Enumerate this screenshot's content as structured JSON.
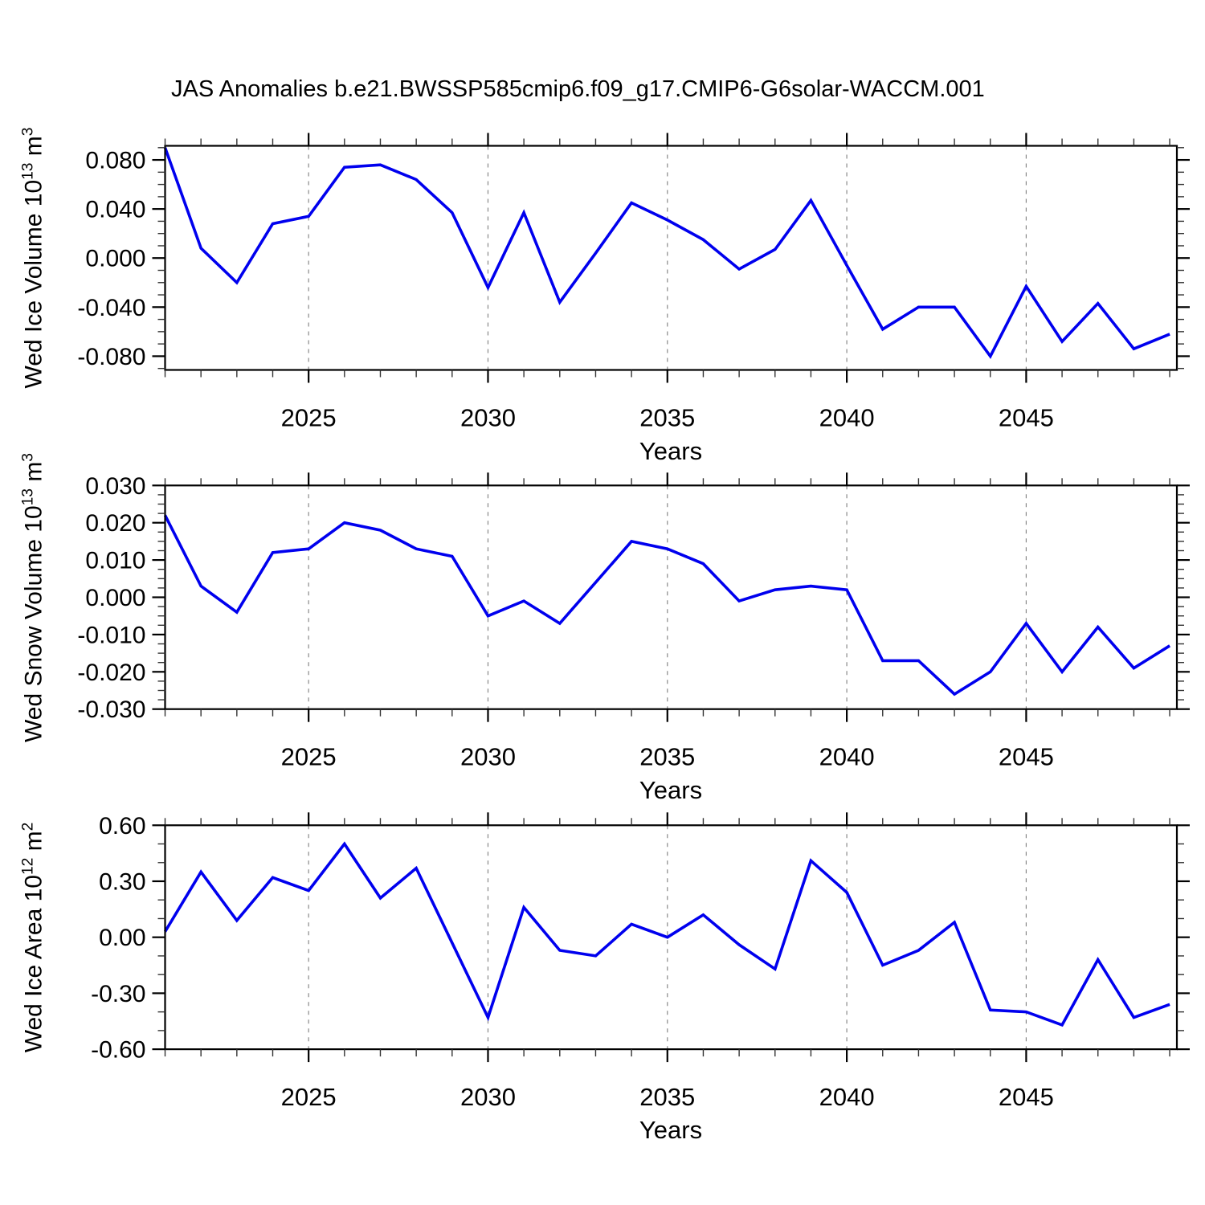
{
  "title": "JAS Anomalies b.e21.BWSSP585cmip6.f09_g17.CMIP6-G6solar-WACCM.001",
  "line_color": "#0000ee",
  "frame_color": "#000000",
  "gridline_color": "#888888",
  "chart_data": [
    {
      "type": "line",
      "ylabel": {
        "text": "Wed Ice Volume 10",
        "exp": "13",
        "unit": " m",
        "unit_exp": "3"
      },
      "xlabel": "Years",
      "legend": "none",
      "grid": "vertical-dashed-at-major-x",
      "x": [
        2021,
        2022,
        2023,
        2024,
        2025,
        2026,
        2027,
        2028,
        2029,
        2030,
        2031,
        2032,
        2033,
        2034,
        2035,
        2036,
        2037,
        2038,
        2039,
        2040,
        2041,
        2042,
        2043,
        2044,
        2045,
        2046,
        2047,
        2048,
        2049
      ],
      "values": [
        0.09,
        0.008,
        -0.02,
        0.028,
        0.034,
        0.074,
        0.076,
        0.064,
        0.037,
        -0.024,
        0.037,
        -0.036,
        0.004,
        0.045,
        0.031,
        0.015,
        -0.009,
        0.007,
        0.047,
        -0.006,
        -0.058,
        -0.04,
        -0.04,
        -0.08,
        -0.023,
        -0.068,
        -0.037,
        -0.074,
        -0.062
      ],
      "xlim": [
        2021,
        2049.2
      ],
      "ylim": [
        -0.0912,
        0.0915
      ],
      "xticks": {
        "values": [
          2025,
          2030,
          2035,
          2040,
          2045
        ],
        "labels": [
          "2025",
          "2030",
          "2035",
          "2040",
          "2045"
        ],
        "minor_step": 1
      },
      "yticks": {
        "values": [
          0.08,
          0.04,
          0,
          -0.04,
          -0.08
        ],
        "labels": [
          "0.080",
          "0.040",
          "0.000",
          "-0.040",
          "-0.080"
        ],
        "minor_step": 0.01
      }
    },
    {
      "type": "line",
      "ylabel": {
        "text": "Wed Snow Volume 10",
        "exp": "13",
        "unit": " m",
        "unit_exp": "3"
      },
      "xlabel": "Years",
      "legend": "none",
      "grid": "vertical-dashed-at-major-x",
      "x": [
        2021,
        2022,
        2023,
        2024,
        2025,
        2026,
        2027,
        2028,
        2029,
        2030,
        2031,
        2032,
        2033,
        2034,
        2035,
        2036,
        2037,
        2038,
        2039,
        2040,
        2041,
        2042,
        2043,
        2044,
        2045,
        2046,
        2047,
        2048,
        2049
      ],
      "values": [
        0.022,
        0.003,
        -0.004,
        0.012,
        0.013,
        0.02,
        0.018,
        0.013,
        0.011,
        -0.005,
        -0.001,
        -0.007,
        0.004,
        0.015,
        0.013,
        0.009,
        -0.001,
        0.002,
        0.003,
        0.002,
        -0.017,
        -0.017,
        -0.026,
        -0.02,
        -0.007,
        -0.02,
        -0.008,
        -0.019,
        -0.013
      ],
      "xlim": [
        2021,
        2049.2
      ],
      "ylim": [
        -0.03,
        0.03
      ],
      "xticks": {
        "values": [
          2025,
          2030,
          2035,
          2040,
          2045
        ],
        "labels": [
          "2025",
          "2030",
          "2035",
          "2040",
          "2045"
        ],
        "minor_step": 1
      },
      "yticks": {
        "values": [
          0.03,
          0.02,
          0.01,
          0,
          -0.01,
          -0.02,
          -0.03
        ],
        "labels": [
          "0.030",
          "0.020",
          "0.010",
          "0.000",
          "-0.010",
          "-0.020",
          "-0.030"
        ],
        "minor_step": 0.0025
      }
    },
    {
      "type": "line",
      "ylabel": {
        "text": "Wed Ice Area 10",
        "exp": "12",
        "unit": " m",
        "unit_exp": "2"
      },
      "xlabel": "Years",
      "legend": "none",
      "grid": "vertical-dashed-at-major-x",
      "x": [
        2021,
        2022,
        2023,
        2024,
        2025,
        2026,
        2027,
        2028,
        2029,
        2030,
        2031,
        2032,
        2033,
        2034,
        2035,
        2036,
        2037,
        2038,
        2039,
        2040,
        2041,
        2042,
        2043,
        2044,
        2045,
        2046,
        2047,
        2048,
        2049
      ],
      "values": [
        0.03,
        0.35,
        0.09,
        0.32,
        0.25,
        0.5,
        0.21,
        0.37,
        -0.03,
        -0.43,
        0.16,
        -0.07,
        -0.1,
        0.07,
        0.0,
        0.12,
        -0.04,
        -0.17,
        0.41,
        0.24,
        -0.15,
        -0.07,
        0.08,
        -0.39,
        -0.4,
        -0.47,
        -0.12,
        -0.43,
        -0.36
      ],
      "xlim": [
        2021,
        2049.2
      ],
      "ylim": [
        -0.6,
        0.6
      ],
      "xticks": {
        "values": [
          2025,
          2030,
          2035,
          2040,
          2045
        ],
        "labels": [
          "2025",
          "2030",
          "2035",
          "2040",
          "2045"
        ],
        "minor_step": 1
      },
      "yticks": {
        "values": [
          0.6,
          0.3,
          0,
          -0.3,
          -0.6
        ],
        "labels": [
          "0.60",
          "0.30",
          "0.00",
          "-0.30",
          "-0.60"
        ],
        "minor_step": 0.1
      }
    }
  ]
}
